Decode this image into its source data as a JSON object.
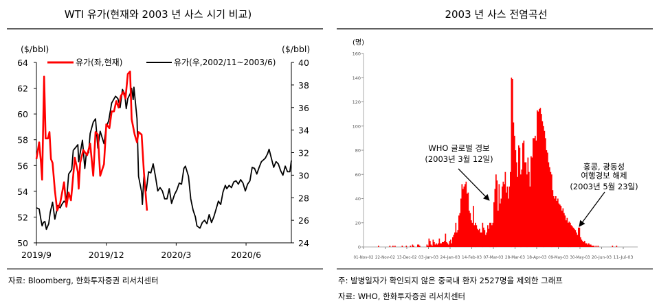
{
  "chart_data": [
    {
      "type": "line",
      "title": "WTI 유가(현재와 2003 년 사스 시기 비교)",
      "y_left_unit": "($/bbl)",
      "y_right_unit": "($/bbl)",
      "ylim_left": [
        50,
        64
      ],
      "ylim_right": [
        24,
        40
      ],
      "y_left_ticks": [
        "50",
        "52",
        "54",
        "56",
        "58",
        "60",
        "62",
        "64"
      ],
      "y_right_ticks": [
        "24",
        "26",
        "28",
        "30",
        "32",
        "34",
        "36",
        "38",
        "40"
      ],
      "x_ticks": [
        {
          "label": "2019/9",
          "day": 0
        },
        {
          "label": "2019/12",
          "day": 91
        },
        {
          "label": "2020/3",
          "day": 182
        },
        {
          "label": "2020/6",
          "day": 273
        }
      ],
      "x_range_days": [
        0,
        332
      ],
      "legend_position": "top",
      "series": [
        {
          "name": "유가(좌,현재)",
          "axis": "left",
          "color": "#ff0000",
          "points": [
            [
              0,
              56.5
            ],
            [
              3.6,
              57.8
            ],
            [
              6,
              56.2
            ],
            [
              7.4,
              54.9
            ],
            [
              10,
              62.9
            ],
            [
              12,
              58.1
            ],
            [
              15,
              58.1
            ],
            [
              17,
              58.6
            ],
            [
              19,
              56.5
            ],
            [
              21,
              56.2
            ],
            [
              24,
              54.1
            ],
            [
              27,
              52.5
            ],
            [
              31,
              53.1
            ],
            [
              36,
              54.7
            ],
            [
              39,
              52.8
            ],
            [
              42,
              53.9
            ],
            [
              45,
              53.3
            ],
            [
              50,
              56.6
            ],
            [
              54,
              55.5
            ],
            [
              55,
              54.2
            ],
            [
              57,
              56.2
            ],
            [
              61,
              57.2
            ],
            [
              66,
              56.8
            ],
            [
              70,
              57.7
            ],
            [
              74,
              55.2
            ],
            [
              77,
              58.6
            ],
            [
              80,
              58.4
            ],
            [
              83,
              55.2
            ],
            [
              88,
              56.1
            ],
            [
              91,
              59.2
            ],
            [
              95,
              58.9
            ],
            [
              98,
              60.2
            ],
            [
              101,
              60.2
            ],
            [
              104,
              61.0
            ],
            [
              107,
              60.5
            ],
            [
              110,
              61.4
            ],
            [
              113,
              61.7
            ],
            [
              116,
              61.2
            ],
            [
              119,
              63.1
            ],
            [
              122,
              63.3
            ],
            [
              124,
              59.6
            ],
            [
              128,
              58.4
            ],
            [
              131,
              57.8
            ],
            [
              133,
              58.6
            ],
            [
              137,
              58.4
            ],
            [
              140,
              55.5
            ],
            [
              144,
              52.5
            ]
          ]
        },
        {
          "name": "유가(우,2002/11~2003/6)",
          "axis": "right",
          "color": "#000000",
          "points": [
            [
              0,
              27.1
            ],
            [
              3.6,
              27.0
            ],
            [
              6,
              26.0
            ],
            [
              7.4,
              25.5
            ],
            [
              9,
              25.8
            ],
            [
              11,
              25.9
            ],
            [
              13,
              25.2
            ],
            [
              16,
              25.7
            ],
            [
              18,
              26.7
            ],
            [
              21,
              27.6
            ],
            [
              24,
              26.1
            ],
            [
              28,
              27.3
            ],
            [
              31,
              27.1
            ],
            [
              33,
              27.4
            ],
            [
              36,
              27.7
            ],
            [
              39,
              27.5
            ],
            [
              42,
              30.1
            ],
            [
              46,
              30.5
            ],
            [
              48,
              32.2
            ],
            [
              54,
              32.7
            ],
            [
              55,
              31.2
            ],
            [
              60,
              33.1
            ],
            [
              63,
              30.6
            ],
            [
              65,
              31.9
            ],
            [
              68,
              32.0
            ],
            [
              70,
              33.7
            ],
            [
              74,
              34.7
            ],
            [
              77,
              35.0
            ],
            [
              80,
              32.4
            ],
            [
              83,
              33.9
            ],
            [
              88,
              32.8
            ],
            [
              91,
              34.3
            ],
            [
              94,
              34.8
            ],
            [
              95,
              35.2
            ],
            [
              98,
              36.4
            ],
            [
              103,
              37.0
            ],
            [
              106,
              36.8
            ],
            [
              109,
              36.0
            ],
            [
              112,
              37.6
            ],
            [
              115,
              37.2
            ],
            [
              117,
              35.9
            ],
            [
              119,
              36.8
            ],
            [
              122,
              37.2
            ],
            [
              124,
              37.7
            ],
            [
              126,
              36.7
            ],
            [
              127,
              37.8
            ],
            [
              131,
              35.0
            ],
            [
              133,
              29.9
            ],
            [
              137,
              28.5
            ],
            [
              138,
              27.4
            ],
            [
              140,
              29.9
            ],
            [
              143,
              28.6
            ],
            [
              146,
              30.3
            ],
            [
              149,
              30.2
            ],
            [
              152,
              31.0
            ],
            [
              155,
              29.9
            ],
            [
              158,
              28.6
            ],
            [
              161,
              28.9
            ],
            [
              164,
              28.6
            ],
            [
              167,
              27.9
            ],
            [
              170,
              27.9
            ],
            [
              173,
              28.8
            ],
            [
              176,
              27.5
            ],
            [
              180,
              28.3
            ],
            [
              183,
              28.7
            ],
            [
              186,
              29.3
            ],
            [
              189,
              29.2
            ],
            [
              192,
              30.6
            ],
            [
              194,
              30.8
            ],
            [
              198,
              29.9
            ],
            [
              201,
              27.9
            ],
            [
              204,
              26.9
            ],
            [
              207,
              26.3
            ],
            [
              209,
              25.5
            ],
            [
              213,
              25.3
            ],
            [
              216,
              25.8
            ],
            [
              219,
              26.0
            ],
            [
              222,
              25.7
            ],
            [
              225,
              26.5
            ],
            [
              228,
              25.8
            ],
            [
              231,
              26.3
            ],
            [
              234,
              27.0
            ],
            [
              237,
              27.7
            ],
            [
              240,
              27.4
            ],
            [
              243,
              28.5
            ],
            [
              246,
              29.1
            ],
            [
              248,
              28.8
            ],
            [
              251,
              29.1
            ],
            [
              254,
              28.9
            ],
            [
              257,
              29.4
            ],
            [
              260,
              29.5
            ],
            [
              263,
              29.2
            ],
            [
              266,
              29.6
            ],
            [
              269,
              29.3
            ],
            [
              272,
              28.6
            ],
            [
              275,
              29.2
            ],
            [
              278,
              29.5
            ],
            [
              281,
              30.7
            ],
            [
              284,
              30.6
            ],
            [
              287,
              30.1
            ],
            [
              290,
              30.7
            ],
            [
              293,
              31.2
            ],
            [
              298,
              31.5
            ],
            [
              301,
              31.9
            ],
            [
              303,
              32.3
            ],
            [
              306,
              31.5
            ],
            [
              309,
              30.7
            ],
            [
              312,
              31.2
            ],
            [
              315,
              31.0
            ],
            [
              318,
              30.4
            ],
            [
              321,
              30.0
            ],
            [
              324,
              30.8
            ],
            [
              327,
              30.3
            ],
            [
              330,
              30.3
            ],
            [
              332,
              31.3
            ]
          ]
        }
      ],
      "source": "자료: Bloomberg, 한화투자증권 리서치센터"
    },
    {
      "type": "bar",
      "title": "2003 년 사스 전염곡선",
      "ylabel": "(명)",
      "ylim": [
        0,
        160
      ],
      "y_ticks": [
        "0",
        "20",
        "40",
        "60",
        "80",
        "100",
        "120",
        "140",
        "160"
      ],
      "x_ticks": [
        "01-Nov-02",
        "22-Nov-02",
        "13-Dec-02",
        "03-Jan-03",
        "24-Jan-03",
        "14-Feb-03",
        "07-Mar-03",
        "28-Mar-03",
        "18-Apr-03",
        "09-May-03",
        "30-May-03",
        "20-Jun-03",
        "11-Jul-03"
      ],
      "x_start": "01-Nov-02",
      "x_step_days": 1,
      "color": "#ff0000",
      "values": [
        0,
        0,
        0,
        0,
        0,
        0,
        0,
        0,
        0,
        0,
        0,
        0,
        0,
        0,
        1,
        0,
        0,
        0,
        0,
        0,
        0,
        0,
        0,
        0,
        0,
        1,
        0,
        0,
        1,
        0,
        1,
        0,
        0,
        0,
        0,
        0,
        0,
        1,
        0,
        0,
        0,
        1,
        0,
        0,
        0,
        1,
        0,
        2,
        1,
        0,
        0,
        0,
        2,
        2,
        1,
        0,
        0,
        0,
        0,
        0,
        0,
        2,
        1,
        7,
        5,
        2,
        1,
        6,
        4,
        2,
        3,
        2,
        3,
        7,
        3,
        3,
        4,
        4,
        5,
        11,
        4,
        3,
        2,
        5,
        6,
        3,
        8,
        10,
        12,
        20,
        12,
        14,
        26,
        28,
        40,
        52,
        48,
        50,
        52,
        54,
        44,
        45,
        30,
        28,
        22,
        20,
        34,
        18,
        20,
        18,
        15,
        14,
        15,
        12,
        12,
        20,
        16,
        14,
        10,
        12,
        18,
        15,
        20,
        20,
        18,
        20,
        37,
        48,
        60,
        55,
        30,
        52,
        36,
        40,
        50,
        54,
        52,
        62,
        45,
        50,
        40,
        50,
        62,
        140,
        139,
        103,
        92,
        80,
        70,
        58,
        84,
        82,
        60,
        64,
        86,
        88,
        70,
        70,
        60,
        74,
        62,
        50,
        75,
        74,
        90,
        90,
        92,
        88,
        113,
        112,
        114,
        115,
        110,
        104,
        100,
        96,
        90,
        80,
        78,
        70,
        66,
        62,
        60,
        47,
        42,
        40,
        42,
        38,
        40,
        36,
        35,
        34,
        30,
        32,
        28,
        26,
        22,
        24,
        20,
        21,
        20,
        18,
        17,
        16,
        15,
        14,
        12,
        10,
        16,
        16,
        8,
        6,
        5,
        4,
        5,
        3,
        3,
        2,
        3,
        2,
        2,
        1,
        1,
        1,
        0,
        1,
        0,
        1,
        0,
        0,
        0,
        0,
        0,
        0,
        0,
        0,
        0,
        0,
        0,
        0,
        0,
        1,
        0,
        0,
        0,
        1,
        0,
        0,
        0,
        0,
        0,
        0,
        0,
        0,
        0,
        0,
        0,
        0,
        0,
        0
      ],
      "annotations": [
        {
          "lines": [
            "WHO 글로벌  경보",
            "(2003년  3월  12일)"
          ]
        },
        {
          "lines": [
            "홍콩, 광동성",
            "여행경보 해제",
            "(2003년 5월 23일)"
          ]
        }
      ],
      "notes": [
        "주: 발병일자가 확인되지 않은 중국내 환자 2527명을 제외한 그래프",
        "자료: WHO, 한화투자증권 리서치센터"
      ]
    }
  ]
}
